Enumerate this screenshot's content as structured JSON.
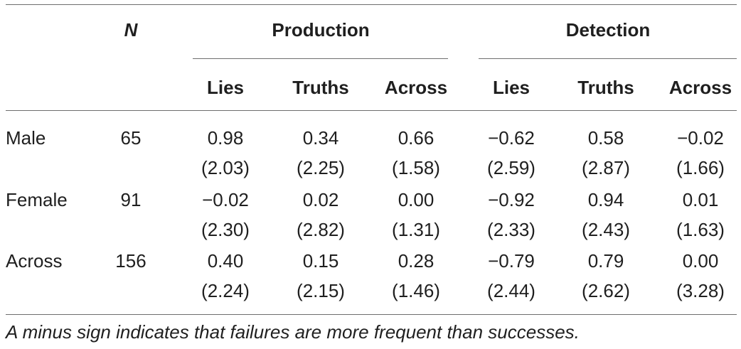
{
  "table": {
    "headers": {
      "n": "N",
      "production": "Production",
      "detection": "Detection",
      "lies": "Lies",
      "truths": "Truths",
      "across": "Across"
    },
    "rows": [
      {
        "label": "Male",
        "n": "65",
        "prod_lies": "0.98",
        "prod_lies_sd": "(2.03)",
        "prod_truths": "0.34",
        "prod_truths_sd": "(2.25)",
        "prod_across": "0.66",
        "prod_across_sd": "(1.58)",
        "det_lies": "−0.62",
        "det_lies_sd": "(2.59)",
        "det_truths": "0.58",
        "det_truths_sd": "(2.87)",
        "det_across": "−0.02",
        "det_across_sd": "(1.66)"
      },
      {
        "label": "Female",
        "n": "91",
        "prod_lies": "−0.02",
        "prod_lies_sd": "(2.30)",
        "prod_truths": "0.02",
        "prod_truths_sd": "(2.82)",
        "prod_across": "0.00",
        "prod_across_sd": "(1.31)",
        "det_lies": "−0.92",
        "det_lies_sd": "(2.33)",
        "det_truths": "0.94",
        "det_truths_sd": "(2.43)",
        "det_across": "0.01",
        "det_across_sd": "(1.63)"
      },
      {
        "label": "Across",
        "n": "156",
        "prod_lies": "0.40",
        "prod_lies_sd": "(2.24)",
        "prod_truths": "0.15",
        "prod_truths_sd": "(2.15)",
        "prod_across": "0.28",
        "prod_across_sd": "(1.46)",
        "det_lies": "−0.79",
        "det_lies_sd": "(2.44)",
        "det_truths": "0.79",
        "det_truths_sd": "(2.62)",
        "det_across": "0.00",
        "det_across_sd": "(3.28)"
      }
    ],
    "footnote": "A minus sign indicates that failures are more frequent than successes."
  }
}
